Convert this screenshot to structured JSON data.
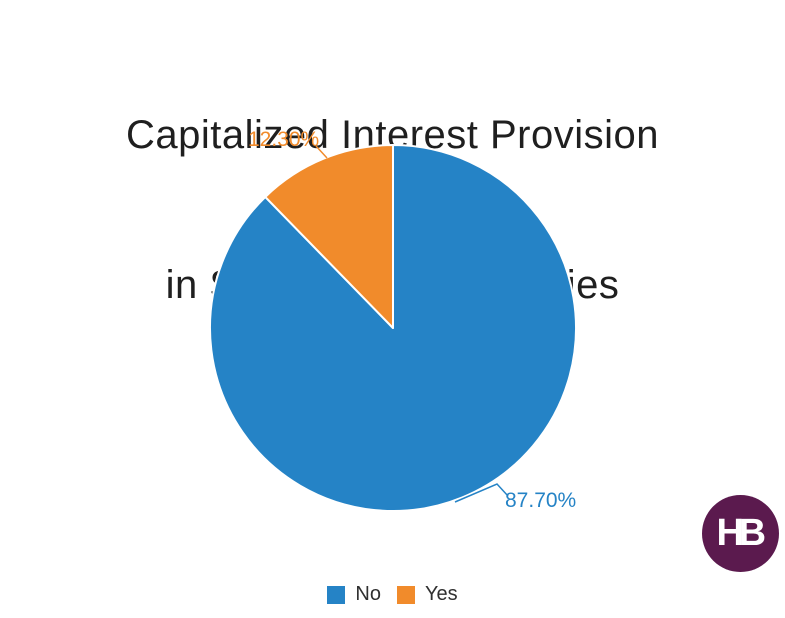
{
  "title": {
    "line1": "Capitalized Interest Provision",
    "line2": "in Subscription  Facilities",
    "color": "#1f1f1f"
  },
  "chart_data": {
    "type": "pie",
    "title": "Capitalized Interest Provision in Subscription Facilities",
    "labels": [
      "No",
      "Yes"
    ],
    "values": [
      87.7,
      12.3
    ],
    "value_labels": [
      "87.70%",
      "12.30%"
    ],
    "colors": [
      "#2583C6",
      "#F18B2B"
    ],
    "start_angle_deg": 0,
    "direction": "clockwise",
    "legend_position": "bottom",
    "label_position": "outside"
  },
  "logo": {
    "text": "HB",
    "background": "#5B1A4E",
    "text_color": "#ffffff"
  }
}
